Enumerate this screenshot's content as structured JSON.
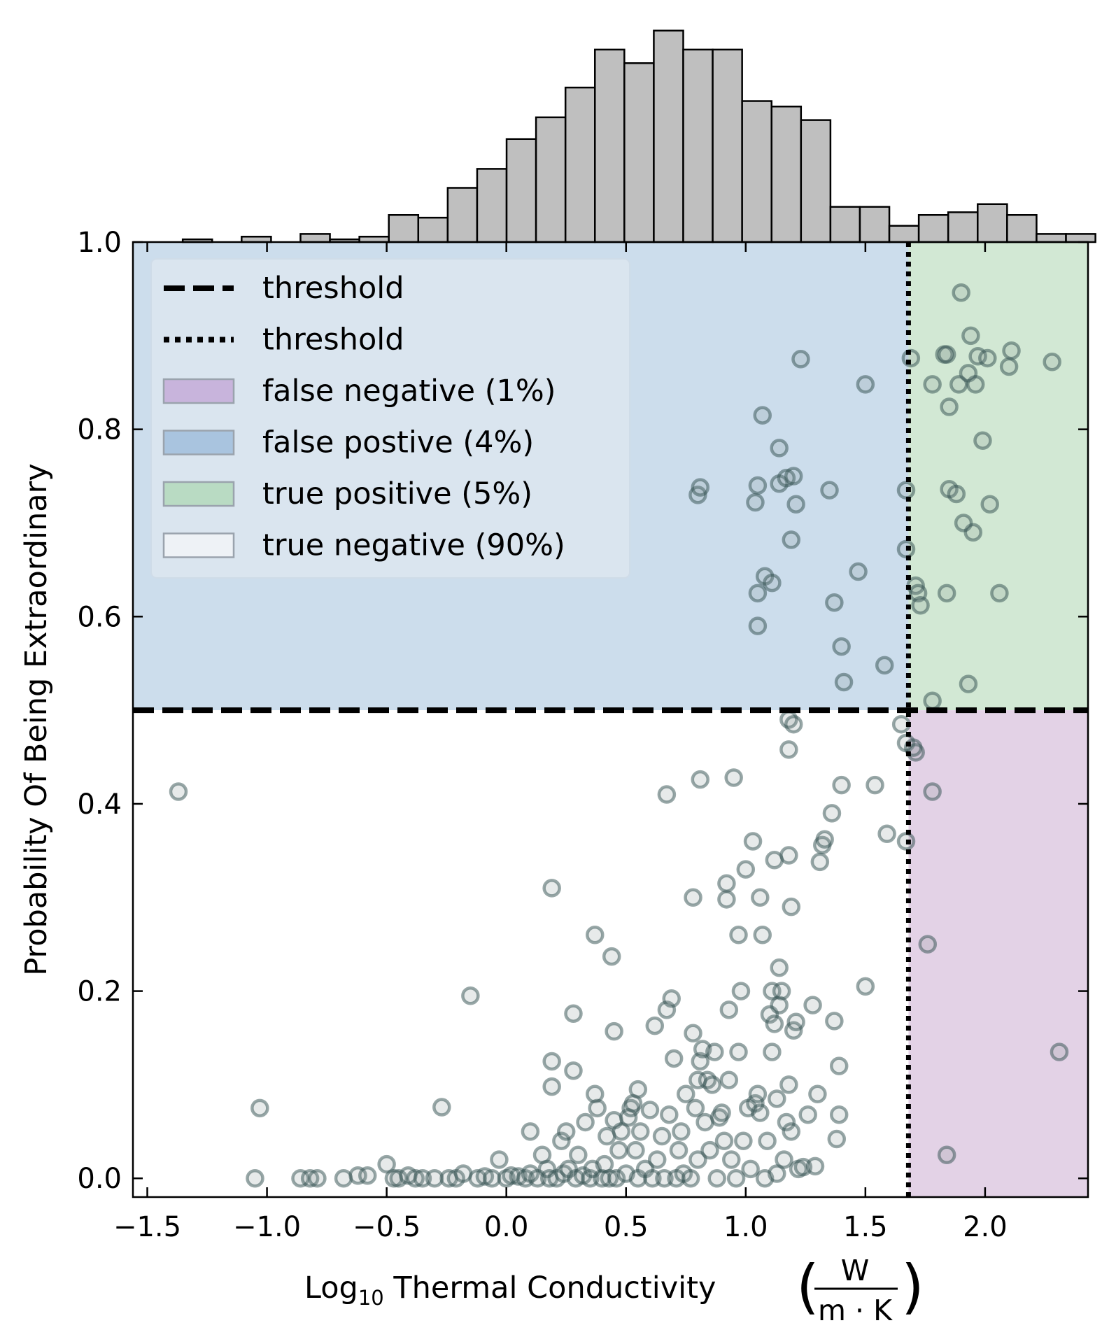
{
  "chart_data": {
    "type": "scatter",
    "xlabel": "Log",
    "xlabel_sub": "10",
    "xlabel_rest": " Thermal Conductivity ",
    "xlabel_unit_num": "W",
    "xlabel_unit_den": "m · K",
    "ylabel": "Probability Of Being Extraordinary",
    "xlim": [
      -1.56,
      2.43
    ],
    "ylim": [
      -0.02,
      1.0
    ],
    "x_ticks": [
      -1.5,
      -1.0,
      -0.5,
      0.0,
      0.5,
      1.0,
      1.5,
      2.0
    ],
    "x_tick_labels": [
      "−1.5",
      "−1.0",
      "−0.5",
      "0.0",
      "0.5",
      "1.0",
      "1.5",
      "2.0"
    ],
    "y_ticks": [
      0.0,
      0.2,
      0.4,
      0.6,
      0.8,
      1.0
    ],
    "y_tick_labels": [
      "0.0",
      "0.2",
      "0.4",
      "0.6",
      "0.8",
      "1.0"
    ],
    "x_threshold": 1.68,
    "y_threshold": 0.5,
    "legend_position": "top-left",
    "legend": [
      {
        "label": "threshold",
        "kind": "dashed"
      },
      {
        "label": "threshold",
        "kind": "dotted"
      },
      {
        "label": "false negative (1%)",
        "kind": "patch",
        "color": "#c8b4dc"
      },
      {
        "label": "false postive (4%)",
        "kind": "patch",
        "color": "#a9c4df"
      },
      {
        "label": "true positive (5%)",
        "kind": "patch",
        "color": "#b9dbc3"
      },
      {
        "label": "true negative (90%)",
        "kind": "patch",
        "color": "#eef2f6"
      }
    ],
    "region_colors": {
      "false_negative": "#e3d2e6",
      "false_positive": "#ccddec",
      "true_positive": "#d2e8d4",
      "true_negative": "#ffffff"
    },
    "histogram": {
      "bin_start": -1.475,
      "bin_width": 0.123,
      "counts": [
        0,
        1,
        0,
        2,
        0,
        3,
        1,
        2,
        10,
        9,
        20,
        27,
        38,
        46,
        57,
        71,
        66,
        78,
        71,
        71,
        52,
        50,
        45,
        13,
        13,
        6,
        10,
        11,
        14,
        10,
        3,
        3
      ],
      "max": 80,
      "color": "#bfbfbf"
    },
    "points": [
      [
        -1.37,
        0.413
      ],
      [
        -1.05,
        0.0
      ],
      [
        -1.03,
        0.075
      ],
      [
        -0.86,
        0.0
      ],
      [
        -0.82,
        0.0
      ],
      [
        -0.79,
        0.0
      ],
      [
        -0.68,
        0.0
      ],
      [
        -0.62,
        0.003
      ],
      [
        -0.58,
        0.003
      ],
      [
        -0.5,
        0.015
      ],
      [
        -0.47,
        0.0
      ],
      [
        -0.45,
        0.0
      ],
      [
        -0.41,
        0.003
      ],
      [
        -0.38,
        0.0
      ],
      [
        -0.35,
        0.0
      ],
      [
        -0.3,
        0.0
      ],
      [
        -0.27,
        0.076
      ],
      [
        -0.24,
        0.0
      ],
      [
        -0.21,
        0.0
      ],
      [
        -0.18,
        0.005
      ],
      [
        -0.15,
        0.195
      ],
      [
        -0.12,
        0.0
      ],
      [
        -0.09,
        0.002
      ],
      [
        -0.06,
        0.0
      ],
      [
        -0.03,
        0.02
      ],
      [
        0.0,
        0.0
      ],
      [
        0.02,
        0.003
      ],
      [
        0.05,
        0.002
      ],
      [
        0.08,
        0.0
      ],
      [
        0.1,
        0.005
      ],
      [
        0.1,
        0.05
      ],
      [
        0.13,
        0.0
      ],
      [
        0.15,
        0.025
      ],
      [
        0.17,
        0.01
      ],
      [
        0.18,
        0.0
      ],
      [
        0.19,
        0.125
      ],
      [
        0.19,
        0.098
      ],
      [
        0.19,
        0.31
      ],
      [
        0.21,
        0.0
      ],
      [
        0.23,
        0.04
      ],
      [
        0.24,
        0.005
      ],
      [
        0.25,
        0.05
      ],
      [
        0.26,
        0.01
      ],
      [
        0.28,
        0.115
      ],
      [
        0.28,
        0.176
      ],
      [
        0.29,
        0.0
      ],
      [
        0.3,
        0.025
      ],
      [
        0.32,
        0.003
      ],
      [
        0.33,
        0.06
      ],
      [
        0.35,
        0.0
      ],
      [
        0.36,
        0.01
      ],
      [
        0.37,
        0.26
      ],
      [
        0.37,
        0.09
      ],
      [
        0.38,
        0.075
      ],
      [
        0.4,
        0.0
      ],
      [
        0.41,
        0.015
      ],
      [
        0.42,
        0.045
      ],
      [
        0.43,
        0.0
      ],
      [
        0.44,
        0.237
      ],
      [
        0.45,
        0.157
      ],
      [
        0.45,
        0.062
      ],
      [
        0.46,
        0.0
      ],
      [
        0.47,
        0.03
      ],
      [
        0.48,
        0.05
      ],
      [
        0.5,
        0.005
      ],
      [
        0.51,
        0.065
      ],
      [
        0.52,
        0.075
      ],
      [
        0.53,
        0.08
      ],
      [
        0.54,
        0.03
      ],
      [
        0.55,
        0.0
      ],
      [
        0.55,
        0.095
      ],
      [
        0.56,
        0.05
      ],
      [
        0.58,
        0.01
      ],
      [
        0.6,
        0.073
      ],
      [
        0.61,
        0.0
      ],
      [
        0.62,
        0.163
      ],
      [
        0.63,
        0.02
      ],
      [
        0.65,
        0.045
      ],
      [
        0.66,
        0.0
      ],
      [
        0.67,
        0.18
      ],
      [
        0.67,
        0.41
      ],
      [
        0.68,
        0.068
      ],
      [
        0.69,
        0.192
      ],
      [
        0.7,
        0.128
      ],
      [
        0.71,
        0.0
      ],
      [
        0.72,
        0.03
      ],
      [
        0.73,
        0.05
      ],
      [
        0.74,
        0.005
      ],
      [
        0.75,
        0.09
      ],
      [
        0.77,
        0.0
      ],
      [
        0.78,
        0.155
      ],
      [
        0.78,
        0.3
      ],
      [
        0.79,
        0.075
      ],
      [
        0.8,
        0.02
      ],
      [
        0.8,
        0.105
      ],
      [
        0.81,
        0.125
      ],
      [
        0.81,
        0.426
      ],
      [
        0.82,
        0.138
      ],
      [
        0.83,
        0.06
      ],
      [
        0.84,
        0.105
      ],
      [
        0.85,
        0.03
      ],
      [
        0.86,
        0.1
      ],
      [
        0.87,
        0.135
      ],
      [
        0.88,
        0.0
      ],
      [
        0.89,
        0.065
      ],
      [
        0.9,
        0.07
      ],
      [
        0.91,
        0.04
      ],
      [
        0.92,
        0.315
      ],
      [
        0.92,
        0.298
      ],
      [
        0.93,
        0.18
      ],
      [
        0.93,
        0.105
      ],
      [
        0.94,
        0.02
      ],
      [
        0.95,
        0.428
      ],
      [
        0.96,
        0.0
      ],
      [
        0.97,
        0.26
      ],
      [
        0.97,
        0.135
      ],
      [
        0.98,
        0.2
      ],
      [
        0.99,
        0.04
      ],
      [
        1.0,
        0.33
      ],
      [
        1.01,
        0.075
      ],
      [
        1.02,
        0.01
      ],
      [
        1.03,
        0.36
      ],
      [
        1.04,
        0.08
      ],
      [
        1.05,
        0.09
      ],
      [
        1.06,
        0.3
      ],
      [
        1.06,
        0.07
      ],
      [
        1.07,
        0.26
      ],
      [
        1.08,
        0.0
      ],
      [
        1.09,
        0.04
      ],
      [
        1.1,
        0.175
      ],
      [
        1.11,
        0.2
      ],
      [
        1.11,
        0.135
      ],
      [
        1.12,
        0.34
      ],
      [
        1.12,
        0.165
      ],
      [
        1.13,
        0.085
      ],
      [
        1.13,
        0.005
      ],
      [
        1.14,
        0.225
      ],
      [
        1.14,
        0.185
      ],
      [
        1.15,
        0.2
      ],
      [
        1.16,
        0.02
      ],
      [
        1.17,
        0.06
      ],
      [
        1.18,
        0.1
      ],
      [
        1.18,
        0.345
      ],
      [
        1.19,
        0.29
      ],
      [
        1.19,
        0.05
      ],
      [
        1.2,
        0.158
      ],
      [
        1.21,
        0.167
      ],
      [
        1.22,
        0.01
      ],
      [
        1.24,
        0.012
      ],
      [
        1.26,
        0.068
      ],
      [
        1.28,
        0.185
      ],
      [
        1.29,
        0.013
      ],
      [
        1.3,
        0.09
      ],
      [
        1.31,
        0.338
      ],
      [
        1.32,
        0.356
      ],
      [
        1.33,
        0.362
      ],
      [
        1.36,
        0.39
      ],
      [
        1.37,
        0.168
      ],
      [
        1.38,
        0.042
      ],
      [
        1.39,
        0.12
      ],
      [
        1.39,
        0.068
      ],
      [
        1.4,
        0.42
      ],
      [
        1.5,
        0.205
      ],
      [
        1.54,
        0.42
      ],
      [
        1.59,
        0.368
      ],
      [
        1.65,
        0.485
      ],
      [
        1.67,
        0.465
      ],
      [
        1.67,
        0.36
      ],
      [
        1.71,
        0.455
      ],
      [
        1.7,
        0.46
      ],
      [
        1.18,
        0.49
      ],
      [
        1.2,
        0.485
      ],
      [
        1.18,
        0.458
      ],
      [
        1.76,
        0.25
      ],
      [
        1.78,
        0.413
      ],
      [
        1.84,
        0.025
      ],
      [
        2.31,
        0.135
      ],
      [
        1.58,
        0.548
      ],
      [
        1.41,
        0.53
      ],
      [
        1.4,
        0.568
      ],
      [
        1.37,
        0.615
      ],
      [
        1.47,
        0.648
      ],
      [
        1.05,
        0.59
      ],
      [
        1.05,
        0.625
      ],
      [
        1.08,
        0.643
      ],
      [
        1.11,
        0.636
      ],
      [
        1.19,
        0.682
      ],
      [
        1.04,
        0.722
      ],
      [
        1.05,
        0.74
      ],
      [
        0.8,
        0.73
      ],
      [
        0.81,
        0.738
      ],
      [
        1.14,
        0.742
      ],
      [
        1.17,
        0.748
      ],
      [
        1.2,
        0.75
      ],
      [
        1.21,
        0.72
      ],
      [
        1.14,
        0.78
      ],
      [
        1.07,
        0.815
      ],
      [
        1.35,
        0.735
      ],
      [
        1.5,
        0.848
      ],
      [
        1.23,
        0.875
      ],
      [
        1.67,
        0.735
      ],
      [
        1.67,
        0.672
      ],
      [
        1.71,
        0.633
      ],
      [
        1.72,
        0.625
      ],
      [
        1.73,
        0.612
      ],
      [
        1.78,
        0.51
      ],
      [
        1.84,
        0.625
      ],
      [
        1.93,
        0.528
      ],
      [
        2.06,
        0.625
      ],
      [
        1.95,
        0.69
      ],
      [
        1.91,
        0.7
      ],
      [
        2.02,
        0.72
      ],
      [
        1.85,
        0.736
      ],
      [
        1.88,
        0.731
      ],
      [
        1.99,
        0.788
      ],
      [
        1.78,
        0.848
      ],
      [
        1.85,
        0.824
      ],
      [
        1.89,
        0.848
      ],
      [
        1.93,
        0.86
      ],
      [
        1.96,
        0.848
      ],
      [
        1.83,
        0.88
      ],
      [
        1.84,
        0.88
      ],
      [
        1.97,
        0.878
      ],
      [
        2.01,
        0.876
      ],
      [
        2.1,
        0.867
      ],
      [
        2.11,
        0.884
      ],
      [
        1.94,
        0.9
      ],
      [
        1.9,
        0.946
      ],
      [
        1.69,
        0.876
      ],
      [
        2.28,
        0.872
      ]
    ]
  }
}
